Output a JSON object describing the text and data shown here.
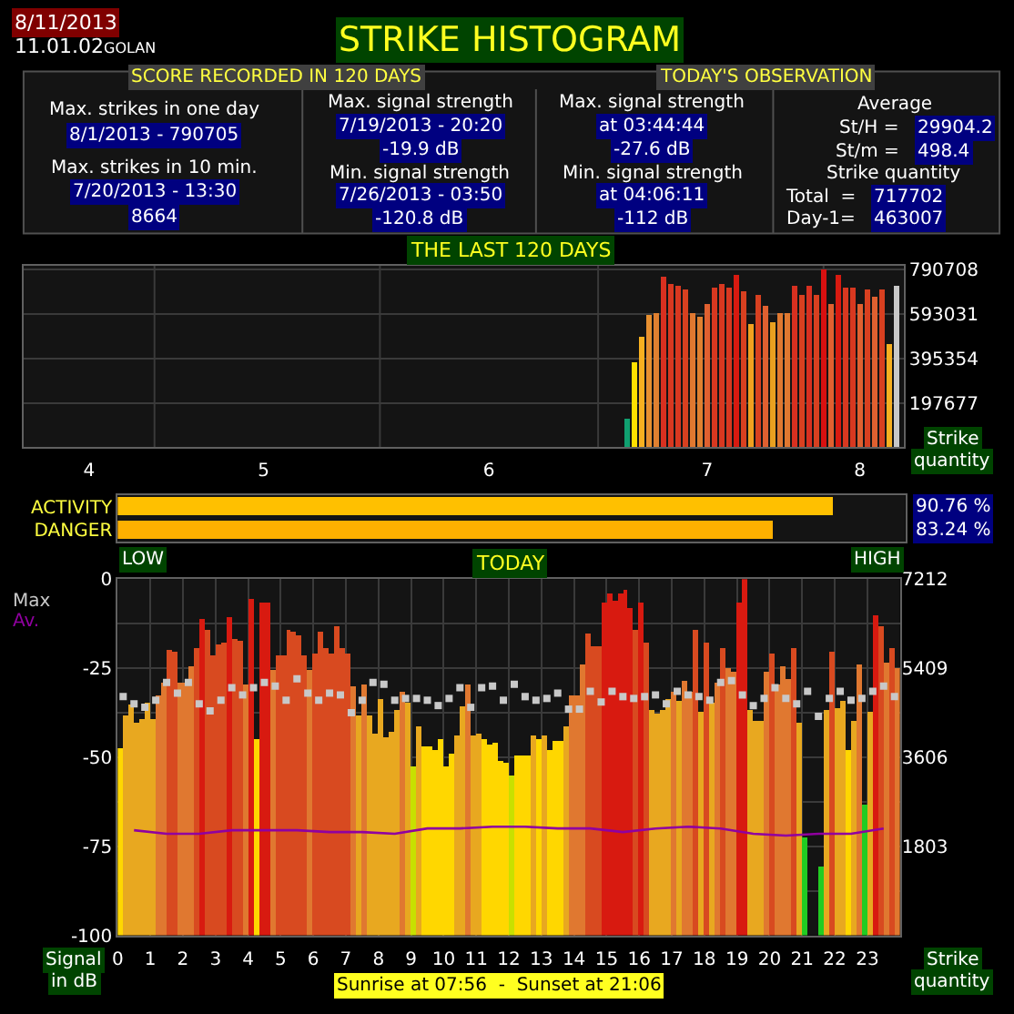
{
  "chart_data": [
    {
      "type": "other",
      "title": "STRIKE HISTOGRAM",
      "annotations": [
        "8/11/2013",
        "11.01.02",
        "GOLAN",
        "SCORE RECORDED IN 120 DAYS",
        "TODAY'S OBSERVATION",
        "Max. strikes in one day",
        "8/1/2013 - 790705",
        "Max. strikes in 10 min.",
        "7/20/2013 - 13:30",
        "8664",
        "Max. signal strength",
        "7/19/2013 - 20:20",
        "-19.9 dB",
        "Min. signal strength",
        "7/26/2013 - 03:50",
        "-120.8 dB",
        "Max. signal strength",
        "at 03:44:44",
        "-27.6 dB",
        "Min. signal strength",
        "at 04:06:11",
        "-112 dB",
        "Average",
        "St/H = ",
        "29904.2",
        "St/m = ",
        "498.4",
        "Strike quantity",
        "Total  = ",
        "717702",
        "Day-1= ",
        "463007"
      ]
    },
    {
      "type": "bar",
      "title": "THE LAST 120 DAYS",
      "ylabel": "Strike quantity",
      "grid": "y",
      "xlim": [
        "2013-04-13",
        "2013-08-12"
      ],
      "ylim": [
        0,
        807000
      ],
      "xticks": [
        {
          "value": "2013-04-22",
          "label": "4"
        },
        {
          "value": "2013-05-16",
          "label": "5"
        },
        {
          "value": "2013-06-16",
          "label": "6"
        },
        {
          "value": "2013-07-16",
          "label": "7"
        },
        {
          "value": "2013-08-06",
          "label": "8"
        }
      ],
      "yticks": [
        197677,
        395354,
        593031,
        790708
      ],
      "ref_lines": [
        {
          "axis": "x",
          "value": "2013-05-01",
          "color": "#3a3a3a"
        },
        {
          "axis": "x",
          "value": "2013-06-01",
          "color": "#3a3a3a"
        },
        {
          "axis": "x",
          "value": "2013-07-01",
          "color": "#3a3a3a"
        },
        {
          "axis": "x",
          "value": "2013-08-01",
          "color": "#3a3a3a"
        }
      ],
      "x": [
        "2013-07-05",
        "2013-07-06",
        "2013-07-07",
        "2013-07-08",
        "2013-07-09",
        "2013-07-10",
        "2013-07-11",
        "2013-07-12",
        "2013-07-13",
        "2013-07-14",
        "2013-07-15",
        "2013-07-16",
        "2013-07-17",
        "2013-07-18",
        "2013-07-19",
        "2013-07-20",
        "2013-07-21",
        "2013-07-22",
        "2013-07-23",
        "2013-07-24",
        "2013-07-25",
        "2013-07-26",
        "2013-07-27",
        "2013-07-28",
        "2013-07-29",
        "2013-07-30",
        "2013-07-31",
        "2013-08-01",
        "2013-08-02",
        "2013-08-03",
        "2013-08-04",
        "2013-08-05",
        "2013-08-06",
        "2013-08-07",
        "2013-08-08",
        "2013-08-09",
        "2013-08-10",
        "2013-08-11"
      ],
      "values": [
        130000,
        380000,
        490000,
        590000,
        600000,
        760000,
        730000,
        720000,
        700000,
        600000,
        580000,
        640000,
        710000,
        730000,
        710000,
        770000,
        690000,
        550000,
        680000,
        630000,
        560000,
        600000,
        600000,
        720000,
        680000,
        720000,
        680000,
        790705,
        640000,
        770000,
        710000,
        710000,
        640000,
        700000,
        670000,
        700000,
        463007,
        717702
      ],
      "colors": [
        "#10a070",
        "#ffe000",
        "#f8b020",
        "#e89030",
        "#e08030",
        "#d83020",
        "#d83820",
        "#d83820",
        "#d84020",
        "#e07830",
        "#e08030",
        "#e06030",
        "#d83820",
        "#d83820",
        "#d83820",
        "#d81a10",
        "#d84020",
        "#f0a020",
        "#d84020",
        "#e06030",
        "#e8a020",
        "#e07830",
        "#e07830",
        "#d83020",
        "#d84020",
        "#d83020",
        "#d84020",
        "#d81010",
        "#e06030",
        "#d81a10",
        "#d83820",
        "#d83820",
        "#e06030",
        "#d84020",
        "#e06030",
        "#d84020",
        "#f8b020",
        "#c8c8c8"
      ]
    },
    {
      "type": "bar",
      "orientation": "horizontal",
      "categories": [
        "ACTIVITY",
        "DANGER"
      ],
      "xlim": [
        0,
        100
      ],
      "tick_labels": "y",
      "annotations": [
        "LOW",
        "HIGH"
      ],
      "series": [
        {
          "values": [
            90.76,
            83.24
          ],
          "colors": [
            "#ffc000",
            "#ffb000"
          ],
          "value_labels": [
            "90.76 %",
            "83.24 %"
          ]
        }
      ]
    },
    {
      "type": "bar",
      "title": "TODAY",
      "ylabel": "Signal in dB",
      "y2label": "Strike quantity",
      "grid": true,
      "xlim": [
        0,
        24
      ],
      "ylim": [
        -100,
        0
      ],
      "y2lim": [
        0,
        7212
      ],
      "xticks": [
        0,
        1,
        2,
        3,
        4,
        5,
        6,
        7,
        8,
        9,
        10,
        11,
        12,
        13,
        14,
        15,
        16,
        17,
        18,
        19,
        20,
        21,
        22,
        23
      ],
      "yticks": [
        0,
        {
          "value": -12.5,
          "label": null
        },
        -25,
        {
          "value": -37.5,
          "label": null
        },
        -50,
        {
          "value": -62.5,
          "label": null
        },
        -75,
        {
          "value": -87.5,
          "label": null
        },
        -100
      ],
      "y2ticks": [
        1803,
        3606,
        5409,
        7212
      ],
      "annotations": [
        "Sunrise at 07:56  -  Sunset at 21:06"
      ],
      "series": [
        {
          "type": "bar",
          "axis": "y2",
          "x": [
            0,
            0.167,
            0.333,
            0.5,
            0.667,
            0.833,
            1,
            1.167,
            1.333,
            1.5,
            1.667,
            1.833,
            2,
            2.167,
            2.333,
            2.5,
            2.667,
            2.833,
            3,
            3.167,
            3.333,
            3.5,
            3.667,
            3.833,
            4,
            4.167,
            4.333,
            4.5,
            4.667,
            4.833,
            5,
            5.167,
            5.333,
            5.5,
            5.667,
            5.833,
            6,
            6.167,
            6.333,
            6.5,
            6.667,
            6.833,
            7,
            7.167,
            7.333,
            7.5,
            7.667,
            7.833,
            8,
            8.167,
            8.333,
            8.5,
            8.667,
            8.833,
            9,
            9.167,
            9.333,
            9.5,
            9.667,
            9.833,
            10,
            10.167,
            10.333,
            10.5,
            10.667,
            10.833,
            11,
            11.167,
            11.333,
            11.5,
            11.667,
            11.833,
            12,
            12.167,
            12.333,
            12.5,
            12.667,
            12.833,
            13,
            13.167,
            13.333,
            13.5,
            13.667,
            13.833,
            14,
            14.167,
            14.333,
            14.5,
            14.667,
            14.833,
            15,
            15.167,
            15.333,
            15.5,
            15.667,
            15.833,
            16,
            16.167,
            16.333,
            16.5,
            16.667,
            16.833,
            17,
            17.167,
            17.333,
            17.5,
            17.667,
            17.833,
            18,
            18.167,
            18.333,
            18.5,
            18.667,
            18.833,
            19,
            19.167,
            19.333,
            19.5,
            19.667,
            19.833,
            20,
            20.167,
            20.333,
            20.5,
            20.667,
            20.833,
            21,
            21.167,
            21.333,
            21.5,
            21.667,
            21.833,
            22,
            22.167,
            22.333,
            22.5,
            22.667,
            22.833,
            23,
            23.167,
            23.333,
            23.5,
            23.667,
            23.833
          ],
          "values": [
            3790,
            4450,
            4660,
            4300,
            4390,
            4690,
            4390,
            4870,
            5110,
            5790,
            5730,
            5110,
            5110,
            5430,
            5830,
            6390,
            6190,
            5650,
            5890,
            5910,
            6450,
            6010,
            5950,
            5070,
            6820,
            3970,
            6730,
            6730,
            5370,
            5650,
            5650,
            6190,
            6130,
            6070,
            5650,
            5370,
            5710,
            6130,
            5830,
            5710,
            6250,
            5830,
            5710,
            5050,
            4450,
            5070,
            4450,
            4090,
            4780,
            4000,
            4110,
            4570,
            4930,
            4710,
            3430,
            4210,
            3820,
            3820,
            3750,
            3970,
            3430,
            3670,
            4060,
            4630,
            5080,
            4060,
            4090,
            3970,
            3850,
            3910,
            3510,
            3490,
            3250,
            3640,
            3640,
            3640,
            4030,
            3970,
            4030,
            3730,
            3930,
            3930,
            4210,
            4870,
            4870,
            5470,
            6090,
            5850,
            5850,
            6730,
            6910,
            6760,
            6910,
            7000,
            6640,
            6190,
            6730,
            5910,
            4570,
            4470,
            4570,
            4780,
            4930,
            4750,
            5140,
            4930,
            6190,
            4530,
            5910,
            4690,
            5110,
            5830,
            5410,
            5350,
            6730,
            7212,
            4570,
            4350,
            4330,
            5350,
            5710,
            5080,
            5440,
            5170,
            5830,
            4300,
            1980,
            null,
            null,
            1380,
            4570,
            5730,
            4590,
            4750,
            3750,
            4330,
            5470,
            2640,
            4510,
            6490,
            6270,
            5530,
            5810,
            5390
          ],
          "colors": [
            "#ffd700",
            "#e8a820",
            "#e8a820",
            "#e8a820",
            "#e8a820",
            "#e8a820",
            "#e8a820",
            "#e07830",
            "#e07830",
            "#d84a20",
            "#d84a20",
            "#e07830",
            "#e07830",
            "#e07830",
            "#d84a20",
            "#d81a10",
            "#d84a20",
            "#d84a20",
            "#d84a20",
            "#d84a20",
            "#d81a10",
            "#d84a20",
            "#d84a20",
            "#e07830",
            "#d81a10",
            "#ffd700",
            "#d81a10",
            "#d81a10",
            "#e07830",
            "#d84a20",
            "#d84a20",
            "#d84a20",
            "#d84a20",
            "#d84a20",
            "#d84a20",
            "#e07830",
            "#d84a20",
            "#d84a20",
            "#d84a20",
            "#d84a20",
            "#d84a20",
            "#d84a20",
            "#d84a20",
            "#e07830",
            "#e8a820",
            "#e07830",
            "#e8a820",
            "#e8a820",
            "#e8a820",
            "#e8a820",
            "#e8a820",
            "#e8a820",
            "#e07830",
            "#e8a820",
            "#c8e000",
            "#e8a820",
            "#ffd700",
            "#ffd700",
            "#ffd700",
            "#ffd700",
            "#ffd700",
            "#ffd700",
            "#e8a820",
            "#e8a820",
            "#e07830",
            "#e8a820",
            "#e8a820",
            "#ffd700",
            "#ffd700",
            "#ffd700",
            "#ffd700",
            "#ffd700",
            "#c8e000",
            "#ffd700",
            "#ffd700",
            "#ffd700",
            "#e8a820",
            "#ffd700",
            "#e8a820",
            "#ffd700",
            "#ffd700",
            "#ffd700",
            "#e8a820",
            "#e07830",
            "#e07830",
            "#e07830",
            "#d84a20",
            "#d84a20",
            "#d84a20",
            "#d81a10",
            "#d81a10",
            "#d81a10",
            "#d81a10",
            "#d81a10",
            "#d81a10",
            "#d84a20",
            "#d81a10",
            "#d84a20",
            "#e8a820",
            "#e8a820",
            "#e8a820",
            "#e8a820",
            "#e07830",
            "#e8a820",
            "#e07830",
            "#e07830",
            "#d84a20",
            "#e8a820",
            "#d84a20",
            "#e8a820",
            "#e07830",
            "#d84a20",
            "#e07830",
            "#e07830",
            "#d81a10",
            "#d81a10",
            "#e8a820",
            "#e8a820",
            "#e8a820",
            "#e07830",
            "#d84a20",
            "#e07830",
            "#e07830",
            "#e07830",
            "#d84a20",
            "#e8a820",
            "#22cc22",
            null,
            null,
            "#22cc22",
            "#e8a820",
            "#d84a20",
            "#e8a820",
            "#e8a820",
            "#ffd700",
            "#e8a820",
            "#e07830",
            "#22cc22",
            "#e8a820",
            "#d81a10",
            "#d84a20",
            "#e07830",
            "#d84a20",
            "#e07830"
          ]
        },
        {
          "type": "scatter",
          "name": "Max",
          "color": "#c8c8c8",
          "marker": "square",
          "x": [
            0.167,
            0.5,
            0.833,
            1.167,
            1.5,
            1.833,
            2.167,
            2.5,
            2.833,
            3.167,
            3.5,
            3.833,
            4.167,
            4.5,
            4.833,
            5.167,
            5.5,
            5.833,
            6.167,
            6.5,
            6.833,
            7.167,
            7.5,
            7.833,
            8.167,
            8.5,
            8.833,
            9.167,
            9.5,
            9.833,
            10.167,
            10.5,
            10.833,
            11.167,
            11.5,
            11.833,
            12.167,
            12.5,
            12.833,
            13.167,
            13.5,
            13.833,
            14.167,
            14.5,
            14.833,
            15.167,
            15.5,
            15.833,
            16.167,
            16.5,
            16.833,
            17.167,
            17.5,
            17.833,
            18.167,
            18.5,
            18.833,
            19.167,
            19.5,
            19.833,
            20.167,
            20.5,
            20.833,
            21.167,
            21.5,
            21.833,
            22.167,
            22.5,
            22.833,
            23.167,
            23.5,
            23.833
          ],
          "values": [
            -33,
            -35,
            -36,
            -34,
            -29,
            -32,
            -29,
            -35,
            -37,
            -34,
            -30.5,
            -32.5,
            -30.5,
            -29,
            -30,
            -34,
            -28,
            -32,
            -34,
            -32,
            -32.5,
            -37.5,
            -34,
            -29,
            -29.5,
            -34,
            -33.5,
            -33.5,
            -34,
            -35.5,
            -33.5,
            -30.5,
            -36,
            -30.5,
            -30,
            -34,
            -29.5,
            -33,
            -34,
            -33.5,
            -32,
            -36.5,
            -36.5,
            -31.5,
            -34.5,
            -31.5,
            -33,
            -33.5,
            -33,
            -32.5,
            -35,
            -31.5,
            -32.5,
            -33,
            -34,
            -29,
            -28.5,
            -32.5,
            -35.5,
            -33.5,
            -30.5,
            -33.5,
            -35,
            -31.5,
            -38.5,
            -33.5,
            -31.5,
            -34,
            -33.5,
            -31.5,
            -30,
            -33
          ]
        },
        {
          "type": "line",
          "name": "Av.",
          "color": "#9000a0",
          "x": [
            0.5,
            1.5,
            2.5,
            3.5,
            4.5,
            5.5,
            6.5,
            7.5,
            8.5,
            9.5,
            10.5,
            11.5,
            12.5,
            13.5,
            14.5,
            15.5,
            16.5,
            17.5,
            18.5,
            19.5,
            20.5,
            21.5,
            22.5,
            23.5
          ],
          "values": [
            -70.5,
            -71.5,
            -71.5,
            -70.5,
            -70.5,
            -70.5,
            -71,
            -71,
            -71.5,
            -70,
            -70,
            -69.5,
            -69.5,
            -70,
            -70,
            -71,
            -70,
            -69.5,
            -70,
            -71.5,
            -72,
            -71.5,
            -71.5,
            -70
          ]
        }
      ]
    }
  ]
}
